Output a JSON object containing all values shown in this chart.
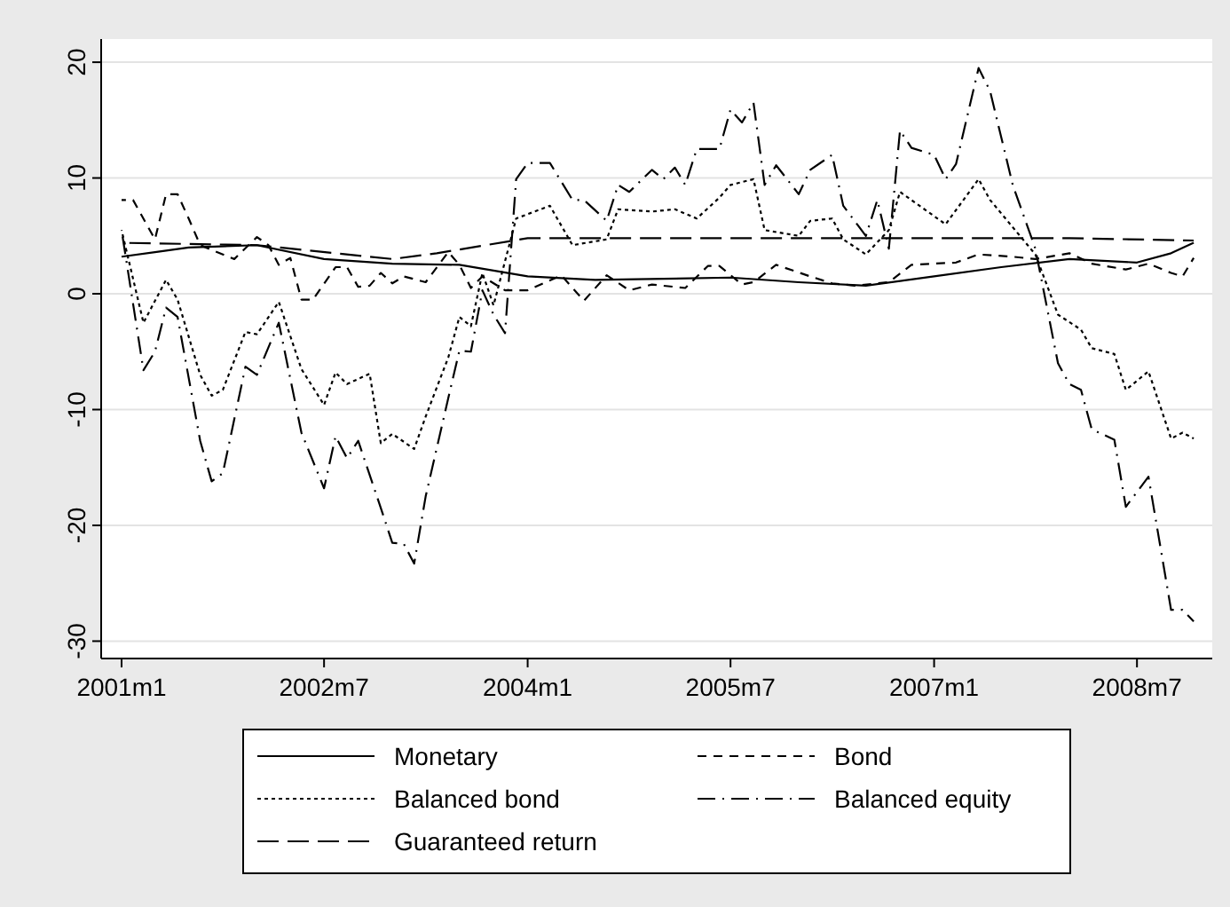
{
  "chart_data": {
    "type": "line",
    "xlim": [
      "2000-11-07",
      "2009-01-20"
    ],
    "ylim": [
      -31.5,
      22
    ],
    "xticks": [
      {
        "value": "2001-01",
        "label": "2001m1"
      },
      {
        "value": "2002-07",
        "label": "2002m7"
      },
      {
        "value": "2004-01",
        "label": "2004m1"
      },
      {
        "value": "2005-07",
        "label": "2005m7"
      },
      {
        "value": "2007-01",
        "label": "2007m1"
      },
      {
        "value": "2008-07",
        "label": "2008m7"
      }
    ],
    "yticks": [
      -30,
      -20,
      -10,
      0,
      10,
      20
    ],
    "grid": "y",
    "legend": "bottom",
    "series": [
      {
        "name": "Monetary",
        "color": "#000000",
        "line_style": "solid",
        "x": [
          "2001-01",
          "2001-04",
          "2001-07",
          "2002-01",
          "2002-07",
          "2003-01",
          "2003-07",
          "2004-01",
          "2004-07",
          "2005-01",
          "2005-07",
          "2006-01",
          "2006-07",
          "2007-01",
          "2007-07",
          "2008-01",
          "2008-07",
          "2008-10",
          "2008-12"
        ],
        "values": [
          3.2,
          3.6,
          4,
          4.2,
          3,
          2.6,
          2.5,
          1.5,
          1.2,
          1.3,
          1.4,
          1,
          0.7,
          1.5,
          2.3,
          3,
          2.7,
          3.5,
          4.4
        ]
      },
      {
        "name": "Bond",
        "color": "#000000",
        "line_style": "dashed",
        "x": [
          "2001-01",
          "2001-02",
          "2001-04",
          "2001-05",
          "2001-06",
          "2001-07",
          "2001-08",
          "2001-11",
          "2002-01",
          "2002-02",
          "2002-03",
          "2002-04",
          "2002-05",
          "2002-06",
          "2002-08",
          "2002-09",
          "2002-10",
          "2002-11",
          "2002-12",
          "2003-01",
          "2003-02",
          "2003-04",
          "2003-06",
          "2003-07",
          "2003-08",
          "2003-09",
          "2003-11",
          "2004-01",
          "2004-04",
          "2004-05",
          "2004-06",
          "2004-08",
          "2004-10",
          "2004-12",
          "2005-03",
          "2005-05",
          "2005-06",
          "2005-08",
          "2005-09",
          "2005-11",
          "2006-02",
          "2006-04",
          "2006-06",
          "2006-09",
          "2006-11",
          "2007-03",
          "2007-05",
          "2007-08",
          "2007-10",
          "2008-01",
          "2008-03",
          "2008-06",
          "2008-08",
          "2008-10",
          "2008-11",
          "2008-12"
        ],
        "values": [
          8.1,
          8.1,
          4.7,
          8.6,
          8.6,
          6.5,
          4.2,
          3,
          4.9,
          4.2,
          2.5,
          3.1,
          -0.5,
          -0.5,
          2.3,
          2.3,
          0.6,
          0.7,
          1.8,
          0.9,
          1.5,
          1,
          3.6,
          2.5,
          0.5,
          1.5,
          0.3,
          0.3,
          1.6,
          0.5,
          -0.6,
          1.6,
          0.3,
          0.8,
          0.5,
          2.4,
          2.4,
          0.8,
          1,
          2.5,
          1.5,
          0.9,
          0.7,
          1,
          2.5,
          2.7,
          3.4,
          3.2,
          3,
          3.5,
          2.6,
          2.1,
          2.6,
          1.8,
          1.5,
          3.1
        ]
      },
      {
        "name": "Balanced bond",
        "color": "#000000",
        "line_style": "dotted",
        "x": [
          "2001-01",
          "2001-03",
          "2001-05",
          "2001-06",
          "2001-08",
          "2001-09",
          "2001-10",
          "2001-12",
          "2002-01",
          "2002-03",
          "2002-05",
          "2002-07",
          "2002-08",
          "2002-09",
          "2002-11",
          "2002-12",
          "2003-01",
          "2003-03",
          "2003-04",
          "2003-06",
          "2003-07",
          "2003-08",
          "2003-09",
          "2003-10",
          "2003-12",
          "2004-03",
          "2004-05",
          "2004-08",
          "2004-09",
          "2004-12",
          "2005-02",
          "2005-04",
          "2005-06",
          "2005-07",
          "2005-09",
          "2005-10",
          "2006-01",
          "2006-02",
          "2006-04",
          "2006-05",
          "2006-07",
          "2006-09",
          "2006-10",
          "2007-02",
          "2007-05",
          "2007-06",
          "2007-10",
          "2007-12",
          "2008-02",
          "2008-03",
          "2008-05",
          "2008-06",
          "2008-08",
          "2008-10",
          "2008-11",
          "2008-12"
        ],
        "values": [
          5.5,
          -2.5,
          1.2,
          -0.5,
          -7,
          -8.8,
          -8.3,
          -3.3,
          -3.5,
          -0.7,
          -6.5,
          -9.6,
          -6.8,
          -7.8,
          -6.9,
          -12.9,
          -12.1,
          -13.4,
          -10.6,
          -5.5,
          -2,
          -2.8,
          1.8,
          -1,
          6.5,
          7.6,
          4.2,
          4.7,
          7.3,
          7.1,
          7.3,
          6.5,
          8.3,
          9.4,
          9.9,
          5.5,
          5,
          6.3,
          6.5,
          4.7,
          3.4,
          5.5,
          8.8,
          6,
          9.9,
          8.1,
          3.4,
          -1.8,
          -3.1,
          -4.7,
          -5.2,
          -8.3,
          -6.7,
          -12.5,
          -12,
          -12.5
        ]
      },
      {
        "name": "Balanced equity",
        "color": "#000000",
        "line_style": "dashdot",
        "x": [
          "2001-01",
          "2001-03",
          "2001-04",
          "2001-05",
          "2001-06",
          "2001-08",
          "2001-09",
          "2001-10",
          "2001-12",
          "2002-01",
          "2002-03",
          "2002-05",
          "2002-07",
          "2002-08",
          "2002-09",
          "2002-10",
          "2002-12",
          "2003-01",
          "2003-02",
          "2003-03",
          "2003-04",
          "2003-06",
          "2003-07",
          "2003-08",
          "2003-09",
          "2003-10",
          "2003-11",
          "2003-12",
          "2004-01",
          "2004-03",
          "2004-05",
          "2004-06",
          "2004-08",
          "2004-09",
          "2004-10",
          "2004-12",
          "2005-01",
          "2005-02",
          "2005-03",
          "2005-04",
          "2005-06",
          "2005-07",
          "2005-08",
          "2005-09",
          "2005-10",
          "2005-11",
          "2006-01",
          "2006-02",
          "2006-04",
          "2006-05",
          "2006-07",
          "2006-08",
          "2006-09",
          "2006-10",
          "2006-11",
          "2007-01",
          "2007-02",
          "2007-03",
          "2007-05",
          "2007-06",
          "2007-08",
          "2007-10",
          "2007-12",
          "2008-01",
          "2008-02",
          "2008-03",
          "2008-05",
          "2008-06",
          "2008-08",
          "2008-10",
          "2008-11",
          "2008-12"
        ],
        "values": [
          5.5,
          -6.6,
          -5,
          -1.2,
          -2,
          -12.7,
          -16.2,
          -15.5,
          -6.3,
          -7,
          -2.5,
          -12,
          -16.8,
          -12.3,
          -14.2,
          -12.7,
          -18.5,
          -21.5,
          -21.6,
          -23.3,
          -17.5,
          -9,
          -4.9,
          -5,
          0.3,
          -1.8,
          -3.4,
          9.9,
          11.3,
          11.3,
          8.1,
          8.1,
          6.3,
          9.4,
          8.8,
          10.7,
          9.9,
          10.9,
          9.4,
          12.5,
          12.5,
          15.9,
          14.8,
          16.5,
          9.4,
          11.1,
          8.6,
          10.7,
          12,
          7.6,
          5,
          8.1,
          3.9,
          14.1,
          12.6,
          12,
          9.9,
          11.2,
          19.5,
          17.5,
          9.4,
          3.9,
          -6,
          -7.8,
          -8.3,
          -11.7,
          -12.6,
          -18.4,
          -15.8,
          -27.3,
          -27.3,
          -28.3
        ]
      },
      {
        "name": "Guaranteed return",
        "color": "#000000",
        "line_style": "longdash",
        "x": [
          "2001-01",
          "2002-01",
          "2003-01",
          "2003-05",
          "2004-01",
          "2005-01",
          "2006-01",
          "2007-01",
          "2008-01",
          "2008-12"
        ],
        "values": [
          4.4,
          4.2,
          3,
          3.5,
          4.8,
          4.8,
          4.8,
          4.8,
          4.8,
          4.6
        ]
      }
    ]
  }
}
